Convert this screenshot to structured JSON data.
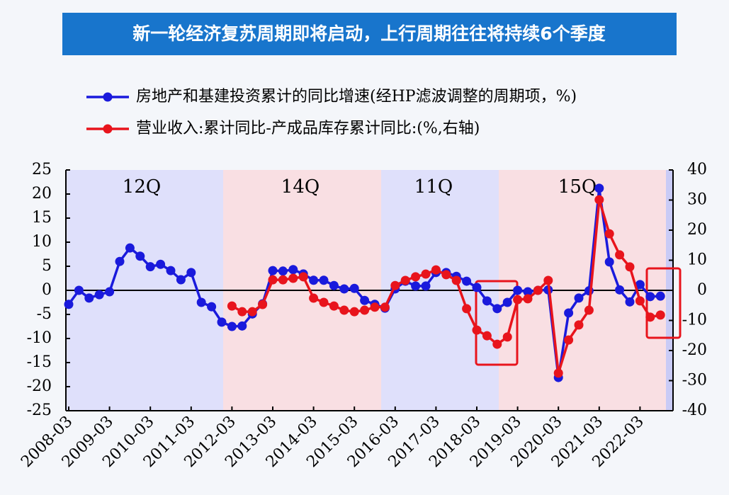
{
  "chart_data": {
    "type": "line",
    "title": "新一轮经济复苏周期即将启动，上行周期往往将持续6个季度",
    "annotations": [
      "12Q",
      "14Q",
      "11Q",
      "15Q"
    ],
    "categories": [
      "2008-03",
      null,
      null,
      null,
      "2009-03",
      null,
      null,
      null,
      "2010-03",
      null,
      null,
      null,
      "2011-03",
      null,
      null,
      null,
      "2012-03",
      null,
      null,
      null,
      "2013-03",
      null,
      null,
      null,
      "2014-03",
      null,
      null,
      null,
      "2015-03",
      null,
      null,
      null,
      "2016-03",
      null,
      null,
      null,
      "2017-03",
      null,
      null,
      null,
      "2018-03",
      null,
      null,
      null,
      "2019-03",
      null,
      null,
      null,
      "2020-03",
      null,
      null,
      null,
      "2021-03",
      null,
      null,
      null,
      "2022-03",
      null,
      null
    ],
    "series": [
      {
        "name": "房地产和基建投资累计的同比增速(经HP滤波调整的周期项，%)",
        "color": "#1a1adc",
        "axis": "y",
        "values": [
          -2.9,
          0,
          -1.6,
          -0.9,
          -0.3,
          6.0,
          8.8,
          7.1,
          4.9,
          5.4,
          4.1,
          2.2,
          3.7,
          -2.5,
          -3.4,
          -6.6,
          -7.5,
          -7.4,
          -4.9,
          -2.8,
          4.1,
          4.0,
          4.3,
          3.4,
          2.1,
          2.1,
          1.0,
          0.3,
          0.4,
          -2.1,
          -2.9,
          -3.7,
          0.3,
          1.9,
          0.9,
          0.9,
          3.7,
          3.7,
          2.9,
          1.9,
          0.6,
          -2.2,
          -3.8,
          -2.5,
          0,
          -0.3,
          0,
          0.1,
          -18.1,
          -4.7,
          -1.6,
          -0.1,
          21.2,
          5.9,
          0.1,
          -2.4,
          1.2,
          -1.3,
          -1.2
        ]
      },
      {
        "name": "营业收入:累计同比-产成品库存累计同比:(%,右轴)",
        "color": "#e8141c",
        "axis": "y2",
        "values": [
          null,
          null,
          null,
          null,
          null,
          null,
          null,
          null,
          null,
          null,
          null,
          null,
          null,
          null,
          null,
          null,
          -5.2,
          -7.1,
          -7.1,
          -4.7,
          3.5,
          3.5,
          4.0,
          4.5,
          -2.6,
          -4.0,
          -5.2,
          -6.6,
          -7.1,
          -6.6,
          -5.6,
          -5.6,
          1.6,
          3.3,
          4.5,
          5.4,
          6.8,
          5.2,
          3.3,
          -6.1,
          -13.2,
          -15.1,
          -17.9,
          -15.5,
          -3.1,
          -2.8,
          0,
          3.3,
          -27.5,
          -16.5,
          -11.5,
          -6.6,
          30.1,
          18.8,
          11.8,
          7.8,
          -3.5,
          -8.9,
          -8.2
        ]
      }
    ],
    "ylim": [
      -25,
      25
    ],
    "yticks": [
      25,
      20,
      15,
      10,
      5,
      0,
      -5,
      -10,
      -15,
      -20,
      -25
    ],
    "y2lim": [
      -40,
      40
    ],
    "y2ticks": [
      40,
      30,
      20,
      10,
      0,
      -10,
      -20,
      -30,
      -40
    ]
  }
}
